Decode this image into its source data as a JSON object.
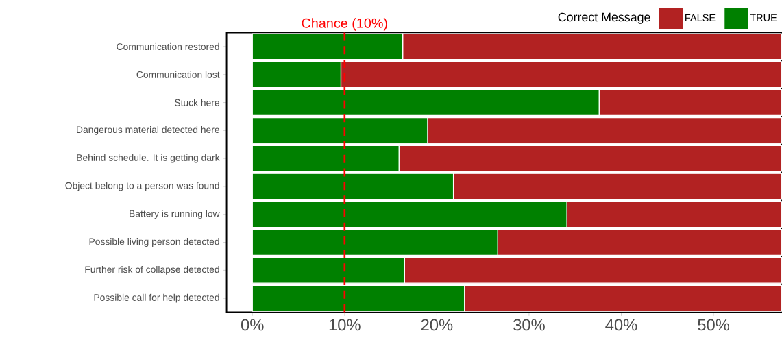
{
  "chart_data": {
    "type": "bar",
    "orientation": "horizontal",
    "stacked": true,
    "categories": [
      "Communication restored",
      "Communication lost",
      "Stuck here",
      "Dangerous material detected here",
      "Behind schedule. It is getting dark",
      "Object belong to a person was found",
      "Battery is running low",
      "Possible living person detected",
      "Further risk of collapse detected",
      "Possible call for help detected"
    ],
    "legend_title": "Correct Message",
    "series": [
      {
        "name": "TRUE",
        "color": "#008000",
        "values": [
          16.3,
          9.6,
          37.6,
          19.0,
          15.9,
          21.8,
          34.1,
          26.6,
          16.5,
          23.0
        ]
      },
      {
        "name": "FALSE",
        "color": "#b22222",
        "values": [
          41.1,
          47.8,
          19.8,
          38.4,
          41.5,
          35.6,
          23.3,
          30.8,
          40.9,
          34.4
        ]
      }
    ],
    "xlim": [
      -2.8,
      57.4
    ],
    "xticks": [
      {
        "value": 0,
        "label": "0%"
      },
      {
        "value": 10,
        "label": "10%"
      },
      {
        "value": 20,
        "label": "20%"
      },
      {
        "value": 30,
        "label": "30%"
      },
      {
        "value": 40,
        "label": "40%"
      },
      {
        "value": 50,
        "label": "50%"
      }
    ],
    "ref_lines": [
      {
        "axis": "x",
        "value": 10,
        "label": "Chance (10%)",
        "color": "#ff0000",
        "line_style": "dashed"
      }
    ],
    "legend": "top right"
  }
}
